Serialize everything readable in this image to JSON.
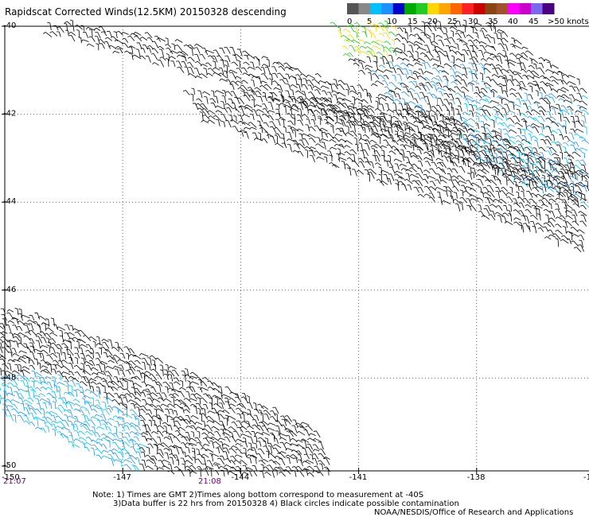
{
  "title": "Rapidscat Corrected Winds(12.5KM) 20150328 descending",
  "legend": {
    "colors": [
      "#555555",
      "#888888",
      "#00bfff",
      "#1e90ff",
      "#0000cd",
      "#00aa00",
      "#22cc22",
      "#ffd700",
      "#ffa500",
      "#ff6600",
      "#ff2222",
      "#cc0000",
      "#8b4513",
      "#a0522d",
      "#ff00ff",
      "#cc00cc",
      "#7b68ee",
      "#4b0082"
    ],
    "labels": [
      "0",
      "5",
      "10",
      "15",
      "20",
      "25",
      "30",
      "35",
      "40",
      "45",
      ">50 knots"
    ]
  },
  "lat_labels": [
    "-40",
    "-42",
    "-44",
    "-46",
    "-48",
    "-50"
  ],
  "lon_labels": [
    "-150",
    "-147",
    "-144",
    "-141",
    "-138",
    "-13"
  ],
  "times": [
    "21:07",
    "21:08"
  ],
  "notes": [
    "Note: 1) Times are GMT 2)Times along bottom correspond to measurement at -40S",
    "3)Data buffer is 22 hrs from 20150328 4) Black circles indicate possible contamination",
    "NOAA/NESDIS/Office of Research and Applications"
  ]
}
